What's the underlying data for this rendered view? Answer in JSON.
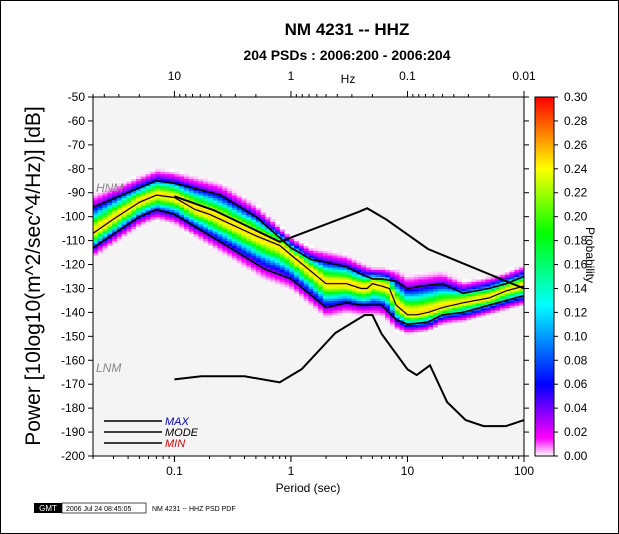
{
  "chart_data": {
    "type": "heatmap",
    "title": "NM 4231 -- HHZ",
    "subtitle": "204 PSDs : 2006:200 - 2006:204",
    "xlabel": "Period (sec)",
    "x2label": "Hz",
    "ylabel": "Power [10log10(m^2/sec^4/Hz)] [dB]",
    "colorbar_label": "Probability",
    "xscale": "log",
    "xlim": [
      0.02,
      100
    ],
    "ylim": [
      -200,
      -50
    ],
    "x_ticks": [
      0.1,
      1,
      10,
      100
    ],
    "x_tick_labels": [
      "0.1",
      "1",
      "10",
      "100"
    ],
    "x2_ticks_hz": [
      10,
      1,
      0.1,
      0.01
    ],
    "x2_tick_labels": [
      "10",
      "1",
      "0.1",
      "0.01"
    ],
    "y_ticks": [
      -50,
      -60,
      -70,
      -80,
      -90,
      -100,
      -110,
      -120,
      -130,
      -140,
      -150,
      -160,
      -170,
      -180,
      -190,
      -200
    ],
    "y_tick_labels": [
      "-50",
      "-60",
      "-70",
      "-80",
      "-90",
      "-100",
      "-110",
      "-120",
      "-130",
      "-140",
      "-150",
      "-160",
      "-170",
      "-180",
      "-190",
      "-200"
    ],
    "colorbar": {
      "range": [
        0.0,
        0.3
      ],
      "ticks": [
        0.3,
        0.28,
        0.26,
        0.24,
        0.22,
        0.2,
        0.18,
        0.16,
        0.14,
        0.12,
        0.1,
        0.08,
        0.06,
        0.04,
        0.02,
        0.0
      ],
      "tick_labels": [
        "0.30",
        "0.28",
        "0.26",
        "0.24",
        "0.22",
        "0.20",
        "0.18",
        "0.16",
        "0.14",
        "0.12",
        "0.10",
        "0.08",
        "0.06",
        "0.04",
        "0.02",
        "0.00"
      ],
      "colors": [
        "#ff00ff",
        "#0000ff",
        "#00ffff",
        "#00ff00",
        "#ffff00",
        "#ff0000"
      ]
    },
    "hnm_label": "HNM",
    "lnm_label": "LNM",
    "hnm": {
      "x": [
        0.1,
        0.22,
        0.8,
        3.8,
        4.5,
        6.5,
        15,
        100
      ],
      "y": [
        -91.5,
        -97.4,
        -110.5,
        -98,
        -96.5,
        -101,
        -113.5,
        -130
      ]
    },
    "lnm": {
      "x": [
        0.1,
        0.17,
        0.4,
        0.8,
        1.24,
        2.4,
        4.3,
        5,
        6,
        10,
        12,
        15.6,
        21.9,
        31.6,
        45,
        70,
        100
      ],
      "y": [
        -168,
        -166.7,
        -166.7,
        -169.2,
        -163.7,
        -148.6,
        -141.1,
        -141.1,
        -149,
        -163.8,
        -166.2,
        -162.1,
        -177.5,
        -185,
        -187.5,
        -187.5,
        -185
      ]
    },
    "max_curve": {
      "x": [
        0.02,
        0.05,
        0.07,
        0.1,
        0.25,
        0.5,
        1,
        1.5,
        2,
        3,
        4,
        5,
        6,
        8,
        10,
        13,
        20,
        30,
        50,
        70,
        100
      ],
      "y": [
        -96,
        -88,
        -85,
        -86,
        -91,
        -100,
        -113,
        -118,
        -119,
        -121,
        -124,
        -126,
        -126,
        -127,
        -130,
        -129,
        -128,
        -132,
        -130,
        -128,
        -125
      ]
    },
    "mode_curve": {
      "x": [
        0.02,
        0.03,
        0.05,
        0.07,
        0.1,
        0.15,
        0.2,
        0.3,
        0.5,
        0.8,
        1,
        1.5,
        2,
        3,
        4,
        4.5,
        5,
        6,
        7,
        8,
        10,
        12,
        15,
        20,
        30,
        50,
        70,
        100
      ],
      "y": [
        -107,
        -101,
        -94,
        -91,
        -92,
        -97,
        -99,
        -103,
        -108,
        -112,
        -116,
        -123,
        -128,
        -128,
        -130,
        -130,
        -128,
        -129,
        -130,
        -137,
        -141,
        -141,
        -140,
        -138,
        -136,
        -134,
        -131,
        -129
      ]
    },
    "min_curve": {
      "x": [
        0.02,
        0.05,
        0.07,
        0.1,
        0.3,
        0.6,
        1,
        1.5,
        2,
        3,
        4,
        5,
        6,
        8,
        10,
        15,
        20,
        30,
        50,
        100
      ],
      "y": [
        -113,
        -100,
        -97,
        -99,
        -113,
        -122,
        -126,
        -133,
        -138,
        -136,
        -137,
        -137,
        -137,
        -143,
        -145,
        -144,
        -141,
        -140,
        -137,
        -133
      ]
    },
    "legend": [
      {
        "label": "MAX",
        "color": "#0000cc"
      },
      {
        "label": "MODE",
        "color": "#000000"
      },
      {
        "label": "MIN",
        "color": "#dd0000"
      }
    ],
    "legend_position": "bottom-left",
    "grid": false
  },
  "footer": {
    "logo_text": "GMT",
    "timestamp": "2006 Jul 24 08:45:05",
    "caption": "NM 4231 -- HHZ PSD PDF"
  }
}
